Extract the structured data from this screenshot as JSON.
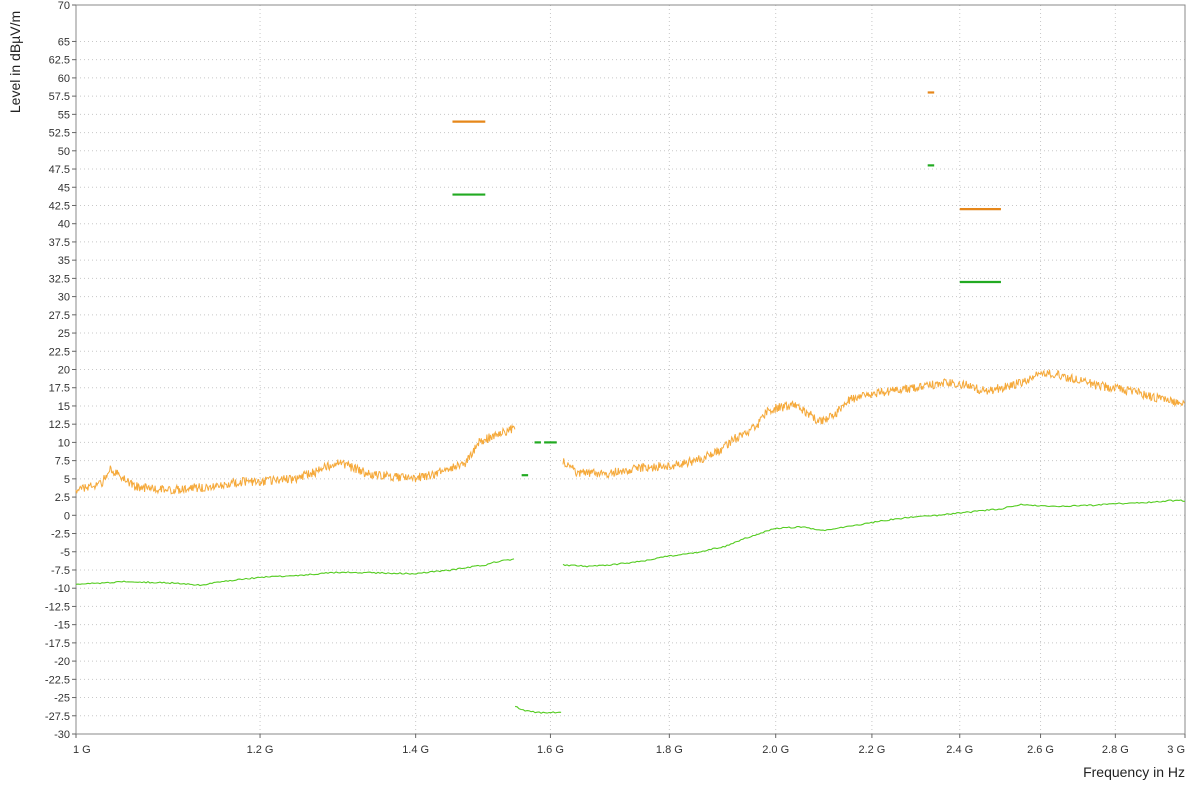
{
  "chart_data": {
    "type": "line",
    "xlabel": "Frequency in Hz",
    "ylabel": "Level in dBµV/m",
    "x_scale": "log",
    "xlim": [
      1000000000,
      3000000000
    ],
    "ylim": [
      -30,
      70
    ],
    "grid": true,
    "x_ticks": [
      {
        "value": 1000000000,
        "label": "1 G"
      },
      {
        "value": 1200000000,
        "label": "1.2 G"
      },
      {
        "value": 1400000000,
        "label": "1.4 G"
      },
      {
        "value": 1600000000,
        "label": "1.6 G"
      },
      {
        "value": 1800000000,
        "label": "1.8 G"
      },
      {
        "value": 2000000000,
        "label": "2.0 G"
      },
      {
        "value": 2200000000,
        "label": "2.2 G"
      },
      {
        "value": 2400000000,
        "label": "2.4 G"
      },
      {
        "value": 2600000000,
        "label": "2.6 G"
      },
      {
        "value": 2800000000,
        "label": "2.8 G"
      },
      {
        "value": 3000000000,
        "label": "3 G"
      }
    ],
    "y_ticks": [
      {
        "value": 70,
        "label": "70"
      },
      {
        "value": 65,
        "label": "65"
      },
      {
        "value": 62.5,
        "label": "62.5"
      },
      {
        "value": 60,
        "label": "60"
      },
      {
        "value": 57.5,
        "label": "57.5"
      },
      {
        "value": 55,
        "label": "55"
      },
      {
        "value": 52.5,
        "label": "52.5"
      },
      {
        "value": 50,
        "label": "50"
      },
      {
        "value": 47.5,
        "label": "47.5"
      },
      {
        "value": 45,
        "label": "45"
      },
      {
        "value": 42.5,
        "label": "42.5"
      },
      {
        "value": 40,
        "label": "40"
      },
      {
        "value": 37.5,
        "label": "37.5"
      },
      {
        "value": 35,
        "label": "35"
      },
      {
        "value": 32.5,
        "label": "32.5"
      },
      {
        "value": 30,
        "label": "30"
      },
      {
        "value": 27.5,
        "label": "27.5"
      },
      {
        "value": 25,
        "label": "25"
      },
      {
        "value": 22.5,
        "label": "22.5"
      },
      {
        "value": 20,
        "label": "20"
      },
      {
        "value": 17.5,
        "label": "17.5"
      },
      {
        "value": 15,
        "label": "15"
      },
      {
        "value": 12.5,
        "label": "12.5"
      },
      {
        "value": 10,
        "label": "10"
      },
      {
        "value": 7.5,
        "label": "7.5"
      },
      {
        "value": 5,
        "label": "5"
      },
      {
        "value": 2.5,
        "label": "2.5"
      },
      {
        "value": 0,
        "label": "0"
      },
      {
        "value": -2.5,
        "label": "-2.5"
      },
      {
        "value": -5,
        "label": "-5"
      },
      {
        "value": -7.5,
        "label": "-7.5"
      },
      {
        "value": -10,
        "label": "-10"
      },
      {
        "value": -12.5,
        "label": "-12.5"
      },
      {
        "value": -15,
        "label": "-15"
      },
      {
        "value": -17.5,
        "label": "-17.5"
      },
      {
        "value": -20,
        "label": "-20"
      },
      {
        "value": -22.5,
        "label": "-22.5"
      },
      {
        "value": -25,
        "label": "-25"
      },
      {
        "value": -27.5,
        "label": "-27.5"
      },
      {
        "value": -30,
        "label": "-30"
      }
    ],
    "colors": {
      "peak_trace": "#f5a93a",
      "average_trace": "#55cc22",
      "peak_limit": "#e6871a",
      "average_limit": "#22aa22",
      "grid": "#c8c8c8",
      "frame": "#888888"
    },
    "series": [
      {
        "style": "peak_trace",
        "segments": [
          [
            [
              1000000000,
              3.5
            ],
            [
              1015000000,
              4.0
            ],
            [
              1025000000,
              4.3
            ],
            [
              1035000000,
              6.5
            ],
            [
              1045000000,
              5.2
            ],
            [
              1060000000,
              4.0
            ],
            [
              1080000000,
              3.6
            ],
            [
              1100000000,
              3.5
            ],
            [
              1120000000,
              3.7
            ],
            [
              1150000000,
              4.0
            ],
            [
              1180000000,
              4.6
            ],
            [
              1210000000,
              4.7
            ],
            [
              1240000000,
              5.0
            ],
            [
              1265000000,
              5.8
            ],
            [
              1285000000,
              6.8
            ],
            [
              1300000000,
              7.3
            ],
            [
              1320000000,
              6.3
            ],
            [
              1340000000,
              5.6
            ],
            [
              1370000000,
              5.3
            ],
            [
              1400000000,
              5.1
            ],
            [
              1425000000,
              5.6
            ],
            [
              1445000000,
              6.5
            ],
            [
              1460000000,
              6.8
            ],
            [
              1470000000,
              7.0
            ],
            [
              1480000000,
              8.2
            ],
            [
              1490000000,
              10.0
            ],
            [
              1510000000,
              10.8
            ],
            [
              1530000000,
              11.5
            ],
            [
              1545000000,
              12.0
            ]
          ],
          [
            [
              1620000000,
              7.5
            ],
            [
              1640000000,
              6.0
            ],
            [
              1660000000,
              5.7
            ],
            [
              1700000000,
              5.8
            ],
            [
              1740000000,
              6.4
            ],
            [
              1780000000,
              6.7
            ],
            [
              1820000000,
              7.0
            ],
            [
              1860000000,
              7.8
            ],
            [
              1890000000,
              8.8
            ],
            [
              1920000000,
              10.5
            ],
            [
              1945000000,
              11.3
            ],
            [
              1965000000,
              12.5
            ],
            [
              1985000000,
              14.5
            ],
            [
              2010000000,
              14.8
            ],
            [
              2040000000,
              15.3
            ],
            [
              2065000000,
              14.0
            ],
            [
              2090000000,
              12.8
            ],
            [
              2120000000,
              13.8
            ],
            [
              2150000000,
              15.8
            ],
            [
              2200000000,
              16.7
            ],
            [
              2260000000,
              17.2
            ],
            [
              2320000000,
              17.7
            ],
            [
              2380000000,
              18.3
            ],
            [
              2420000000,
              17.8
            ],
            [
              2460000000,
              17.0
            ],
            [
              2500000000,
              17.5
            ],
            [
              2550000000,
              18.2
            ],
            [
              2600000000,
              19.6
            ],
            [
              2650000000,
              19.2
            ],
            [
              2700000000,
              18.6
            ],
            [
              2750000000,
              17.8
            ],
            [
              2800000000,
              17.4
            ],
            [
              2850000000,
              17.0
            ],
            [
              2900000000,
              16.3
            ],
            [
              2950000000,
              15.8
            ],
            [
              3000000000,
              15.0
            ]
          ]
        ]
      },
      {
        "style": "average_trace",
        "segments": [
          [
            [
              1000000000,
              -9.5
            ],
            [
              1050000000,
              -9.1
            ],
            [
              1100000000,
              -9.3
            ],
            [
              1130000000,
              -9.6
            ],
            [
              1150000000,
              -9.2
            ],
            [
              1200000000,
              -8.5
            ],
            [
              1250000000,
              -8.2
            ],
            [
              1300000000,
              -7.8
            ],
            [
              1350000000,
              -7.9
            ],
            [
              1400000000,
              -8.0
            ],
            [
              1450000000,
              -7.5
            ],
            [
              1500000000,
              -6.8
            ],
            [
              1520000000,
              -6.3
            ],
            [
              1545000000,
              -6.0
            ]
          ],
          [
            [
              1545000000,
              -26.2
            ],
            [
              1560000000,
              -26.8
            ],
            [
              1575000000,
              -27.0
            ],
            [
              1590000000,
              -27.1
            ],
            [
              1610000000,
              -27.0
            ],
            [
              1620000000,
              -26.9
            ]
          ],
          [
            [
              1620000000,
              -6.8
            ],
            [
              1660000000,
              -7.0
            ],
            [
              1700000000,
              -6.8
            ],
            [
              1750000000,
              -6.3
            ],
            [
              1800000000,
              -5.6
            ],
            [
              1850000000,
              -5.1
            ],
            [
              1900000000,
              -4.3
            ],
            [
              1950000000,
              -2.9
            ],
            [
              2000000000,
              -1.8
            ],
            [
              2050000000,
              -1.6
            ],
            [
              2100000000,
              -2.1
            ],
            [
              2150000000,
              -1.5
            ],
            [
              2200000000,
              -1.0
            ],
            [
              2250000000,
              -0.5
            ],
            [
              2300000000,
              -0.2
            ],
            [
              2350000000,
              0.0
            ],
            [
              2400000000,
              0.3
            ],
            [
              2450000000,
              0.6
            ],
            [
              2500000000,
              0.9
            ],
            [
              2550000000,
              1.5
            ],
            [
              2600000000,
              1.3
            ],
            [
              2650000000,
              1.2
            ],
            [
              2700000000,
              1.3
            ],
            [
              2750000000,
              1.4
            ],
            [
              2800000000,
              1.6
            ],
            [
              2850000000,
              1.7
            ],
            [
              2900000000,
              1.8
            ],
            [
              2950000000,
              2.0
            ],
            [
              3000000000,
              2.0
            ]
          ]
        ]
      }
    ],
    "limit_lines": [
      {
        "style": "peak_limit",
        "x": [
          1452000000,
          1500000000
        ],
        "y": 54
      },
      {
        "style": "peak_limit",
        "x": [
          2325000000,
          2340000000
        ],
        "y": 58
      },
      {
        "style": "peak_limit",
        "x": [
          2400000000,
          2500000000
        ],
        "y": 42
      },
      {
        "style": "average_limit",
        "x": [
          1452000000,
          1500000000
        ],
        "y": 44
      },
      {
        "style": "average_limit",
        "x": [
          2325000000,
          2340000000
        ],
        "y": 48
      },
      {
        "style": "average_limit",
        "x": [
          2400000000,
          2500000000
        ],
        "y": 32
      },
      {
        "style": "average_limit",
        "x": [
          1555000000,
          1565000000
        ],
        "y": 5.5
      },
      {
        "style": "average_limit",
        "x": [
          1575000000,
          1585000000
        ],
        "y": 10
      },
      {
        "style": "average_limit",
        "x": [
          1590000000,
          1610000000
        ],
        "y": 10
      }
    ]
  }
}
